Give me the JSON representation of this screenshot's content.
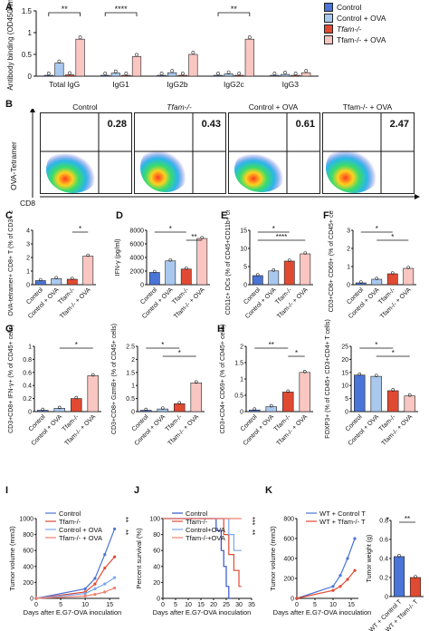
{
  "panels": {
    "A": {
      "label": "A"
    },
    "B": {
      "label": "B"
    },
    "C": {
      "label": "C"
    },
    "D": {
      "label": "D"
    },
    "E": {
      "label": "E"
    },
    "F": {
      "label": "F"
    },
    "G": {
      "label": "G"
    },
    "H": {
      "label": "H"
    },
    "I": {
      "label": "I"
    },
    "J": {
      "label": "J"
    },
    "K": {
      "label": "K"
    }
  },
  "legend_top": {
    "items": [
      {
        "label": "Control",
        "color": "#4a74d6"
      },
      {
        "label": "Control + OVA",
        "color": "#a9c8ee"
      },
      {
        "label": "Tfam-/-",
        "color": "#e14a32"
      },
      {
        "label": "Tfam-/- + OVA",
        "color": "#f9c6c2"
      }
    ]
  },
  "flow": {
    "titles": [
      "Control",
      "Tfam-/-",
      "Control + OVA",
      "Tfam-/- + OVA"
    ],
    "percent": [
      "0.28",
      "0.43",
      "0.61",
      "2.47"
    ],
    "ylabel": "OVA-Tetramer",
    "xlabel": "CD8"
  },
  "colors": {
    "control": "#4a74d6",
    "control_ova": "#a9c8ee",
    "tfam": "#e14a32",
    "tfam_ova": "#f9c6c2"
  },
  "chart_data": [
    {
      "id": "A",
      "type": "bar",
      "ylabel": "Antibody binding (OD450nm)",
      "ylim": [
        0,
        1.5
      ],
      "yticks": [
        0,
        0.5,
        1.0,
        1.5
      ],
      "categories": [
        "Total IgG",
        "IgG1",
        "IgG2b",
        "IgG2c",
        "IgG3"
      ],
      "series": [
        {
          "name": "Control",
          "values": [
            0.02,
            0.02,
            0.02,
            0.02,
            0.02
          ]
        },
        {
          "name": "Control + OVA",
          "values": [
            0.3,
            0.07,
            0.08,
            0.05,
            0.04
          ]
        },
        {
          "name": "Tfam-/-",
          "values": [
            0.03,
            0.02,
            0.02,
            0.02,
            0.02
          ]
        },
        {
          "name": "Tfam-/- + OVA",
          "values": [
            0.85,
            0.45,
            0.5,
            0.85,
            0.08
          ]
        }
      ],
      "significance": [
        {
          "text": "**",
          "group": 0
        },
        {
          "text": "****",
          "group": 1
        },
        {
          "text": "**",
          "group": 3
        }
      ]
    },
    {
      "id": "C",
      "type": "bar",
      "ylabel": "OVA-tetramer+ CD8+ T (% of CD3+ cells)",
      "ylim": [
        0,
        4
      ],
      "yticks": [
        0,
        1,
        2,
        3,
        4
      ],
      "categories": [
        "Control",
        "Control + OVA",
        "Tfam-/-",
        "Tfam-/- + OVA"
      ],
      "values": [
        0.3,
        0.45,
        0.4,
        2.1
      ],
      "significance": [
        {
          "text": "*",
          "from": 2,
          "to": 3
        }
      ]
    },
    {
      "id": "D",
      "type": "bar",
      "ylabel": "IFN-γ (pg/ml)",
      "ylim": [
        0,
        8000
      ],
      "yticks": [
        0,
        2000,
        4000,
        6000,
        8000
      ],
      "categories": [
        "Control",
        "Control + OVA",
        "Tfam-/-",
        "Tfam-/- + OVA"
      ],
      "values": [
        1800,
        3500,
        2300,
        6800
      ],
      "significance": [
        {
          "text": "*",
          "from": 0,
          "to": 2
        },
        {
          "text": "**",
          "from": 2,
          "to": 3
        }
      ]
    },
    {
      "id": "E",
      "type": "bar",
      "ylabel": "CD11c+ DCs (% of CD45+CD11b+ cells)",
      "ylim": [
        0,
        15
      ],
      "yticks": [
        0,
        5,
        10,
        15
      ],
      "categories": [
        "Control",
        "Control + OVA",
        "Tfam-/-",
        "Tfam-/- + OVA"
      ],
      "values": [
        2.5,
        3.8,
        6.5,
        8.5
      ],
      "significance": [
        {
          "text": "*",
          "from": 0,
          "to": 2
        },
        {
          "text": "****",
          "from": 0,
          "to": 3
        }
      ]
    },
    {
      "id": "F",
      "type": "bar",
      "ylabel": "CD3+CD8+ CD69+ (% of CD45+ cells)",
      "ylim": [
        0,
        3
      ],
      "yticks": [
        0,
        1,
        2,
        3
      ],
      "categories": [
        "Control",
        "Control + OVA",
        "Tfam-/-",
        "Tfam-/- + OVA"
      ],
      "values": [
        0.1,
        0.3,
        0.6,
        0.9
      ],
      "significance": [
        {
          "text": "*",
          "from": 0,
          "to": 2
        },
        {
          "text": "*",
          "from": 1,
          "to": 3
        }
      ]
    },
    {
      "id": "G1",
      "type": "bar",
      "ylabel": "CD3+CD8+ IFN-γ+ (% of CD45+ cells)",
      "ylim": [
        0,
        1.0
      ],
      "yticks": [
        0,
        0.2,
        0.4,
        0.6,
        0.8,
        1.0
      ],
      "categories": [
        "Control",
        "Control + OVA",
        "Tfam-/-",
        "Tfam-/- + OVA"
      ],
      "values": [
        0.02,
        0.05,
        0.2,
        0.55
      ],
      "significance": [
        {
          "text": "*",
          "from": 1,
          "to": 3
        }
      ]
    },
    {
      "id": "G2",
      "type": "bar",
      "ylabel": "CD3+CD8+ GzmB+ (% of CD45+ cells)",
      "ylim": [
        0,
        2.5
      ],
      "yticks": [
        0,
        0.5,
        1.0,
        1.5,
        2.0,
        2.5
      ],
      "categories": [
        "Control",
        "Control + OVA",
        "Tfam-/-",
        "Tfam-/- + OVA"
      ],
      "values": [
        0.05,
        0.1,
        0.3,
        1.1
      ],
      "significance": [
        {
          "text": "*",
          "from": 0,
          "to": 2
        },
        {
          "text": "*",
          "from": 1,
          "to": 3
        }
      ]
    },
    {
      "id": "H1",
      "type": "bar",
      "ylabel": "CD3+CD4+ CD69+ (% of CD45+ cells)",
      "ylim": [
        0,
        2.0
      ],
      "yticks": [
        0,
        0.5,
        1.0,
        1.5,
        2.0
      ],
      "categories": [
        "Control",
        "Control + OVA",
        "Tfam-/-",
        "Tfam-/- + OVA"
      ],
      "values": [
        0.05,
        0.15,
        0.6,
        1.2
      ],
      "significance": [
        {
          "text": "**",
          "from": 0,
          "to": 2
        },
        {
          "text": "*",
          "from": 2,
          "to": 3
        }
      ]
    },
    {
      "id": "H2",
      "type": "bar",
      "ylabel": "FOXP3+ (% of CD45+ CD3+CD4+ T cells)",
      "ylim": [
        0,
        25
      ],
      "yticks": [
        0,
        5,
        10,
        15,
        20,
        25
      ],
      "categories": [
        "Control",
        "Control + OVA",
        "Tfam-/-",
        "Tfam-/- + OVA"
      ],
      "values": [
        14,
        13.5,
        8,
        6
      ],
      "significance": [
        {
          "text": "*",
          "from": 0,
          "to": 2
        },
        {
          "text": "*",
          "from": 1,
          "to": 3
        }
      ]
    },
    {
      "id": "I",
      "type": "line",
      "xlabel": "Days after E.G7-OVA inoculation",
      "ylabel": "Tumor volume (mm3)",
      "xlim": [
        0,
        17
      ],
      "xticks": [
        0,
        5,
        10,
        15
      ],
      "ylim": [
        0,
        1000
      ],
      "yticks": [
        0,
        200,
        400,
        600,
        800,
        1000
      ],
      "x": [
        0,
        10,
        12,
        14,
        16
      ],
      "series": [
        {
          "name": "Control",
          "values": [
            0,
            120,
            250,
            550,
            870
          ]
        },
        {
          "name": "Tfam-/-",
          "values": [
            0,
            80,
            180,
            380,
            520
          ]
        },
        {
          "name": "Control + OVA",
          "values": [
            0,
            60,
            120,
            180,
            260
          ]
        },
        {
          "name": "Tfam-/- + OVA",
          "values": [
            0,
            30,
            50,
            80,
            130
          ]
        }
      ],
      "significance": [
        "**",
        "**"
      ]
    },
    {
      "id": "J",
      "type": "line",
      "xlabel": "Days after E.G7-OVA inoculation",
      "ylabel": "Percent survival (%)",
      "xlim": [
        0,
        35
      ],
      "xticks": [
        0,
        5,
        10,
        15,
        20,
        25,
        30,
        35
      ],
      "ylim": [
        0,
        100
      ],
      "yticks": [
        0,
        20,
        40,
        60,
        80,
        100
      ],
      "series": [
        {
          "name": "Control",
          "steps": [
            [
              0,
              100
            ],
            [
              21,
              100
            ],
            [
              21,
              85
            ],
            [
              23,
              85
            ],
            [
              23,
              60
            ],
            [
              24,
              60
            ],
            [
              24,
              40
            ],
            [
              25,
              40
            ],
            [
              25,
              15
            ],
            [
              26,
              15
            ],
            [
              26,
              0
            ],
            [
              27,
              0
            ]
          ]
        },
        {
          "name": "Tfam-/-",
          "steps": [
            [
              0,
              100
            ],
            [
              24,
              100
            ],
            [
              24,
              80
            ],
            [
              26,
              80
            ],
            [
              26,
              55
            ],
            [
              28,
              55
            ],
            [
              28,
              35
            ],
            [
              30,
              35
            ],
            [
              30,
              15
            ],
            [
              31,
              15
            ]
          ]
        },
        {
          "name": "Control+OVA",
          "steps": [
            [
              0,
              100
            ],
            [
              26,
              100
            ],
            [
              26,
              80
            ],
            [
              28,
              80
            ],
            [
              28,
              60
            ],
            [
              31,
              60
            ]
          ]
        },
        {
          "name": "Tfam-/-+OVA",
          "steps": [
            [
              0,
              100
            ],
            [
              31,
              100
            ]
          ]
        }
      ],
      "significance": [
        "***",
        "**"
      ]
    },
    {
      "id": "K1",
      "type": "line",
      "xlabel": "Days after E.G7-OVA inoculation",
      "ylabel": "Tumor volume (mm3)",
      "xlim": [
        0,
        17
      ],
      "xticks": [
        0,
        5,
        10,
        15
      ],
      "ylim": [
        0,
        800
      ],
      "yticks": [
        0,
        200,
        400,
        600,
        800
      ],
      "x": [
        0,
        10,
        12,
        14,
        16
      ],
      "series": [
        {
          "name": "WT + Control T",
          "values": [
            0,
            120,
            230,
            400,
            600
          ]
        },
        {
          "name": "WT + Tfam-/- T",
          "values": [
            0,
            80,
            120,
            190,
            280
          ]
        }
      ],
      "significance": [
        "*"
      ]
    },
    {
      "id": "K2",
      "type": "bar",
      "ylabel": "Tumor weight (g)",
      "ylim": [
        0,
        0.8
      ],
      "yticks": [
        0,
        0.2,
        0.4,
        0.6,
        0.8
      ],
      "categories": [
        "WT + Control T",
        "WT + Tfam-/- T"
      ],
      "values": [
        0.42,
        0.2
      ],
      "significance": [
        {
          "text": "**",
          "from": 0,
          "to": 1
        }
      ]
    }
  ]
}
